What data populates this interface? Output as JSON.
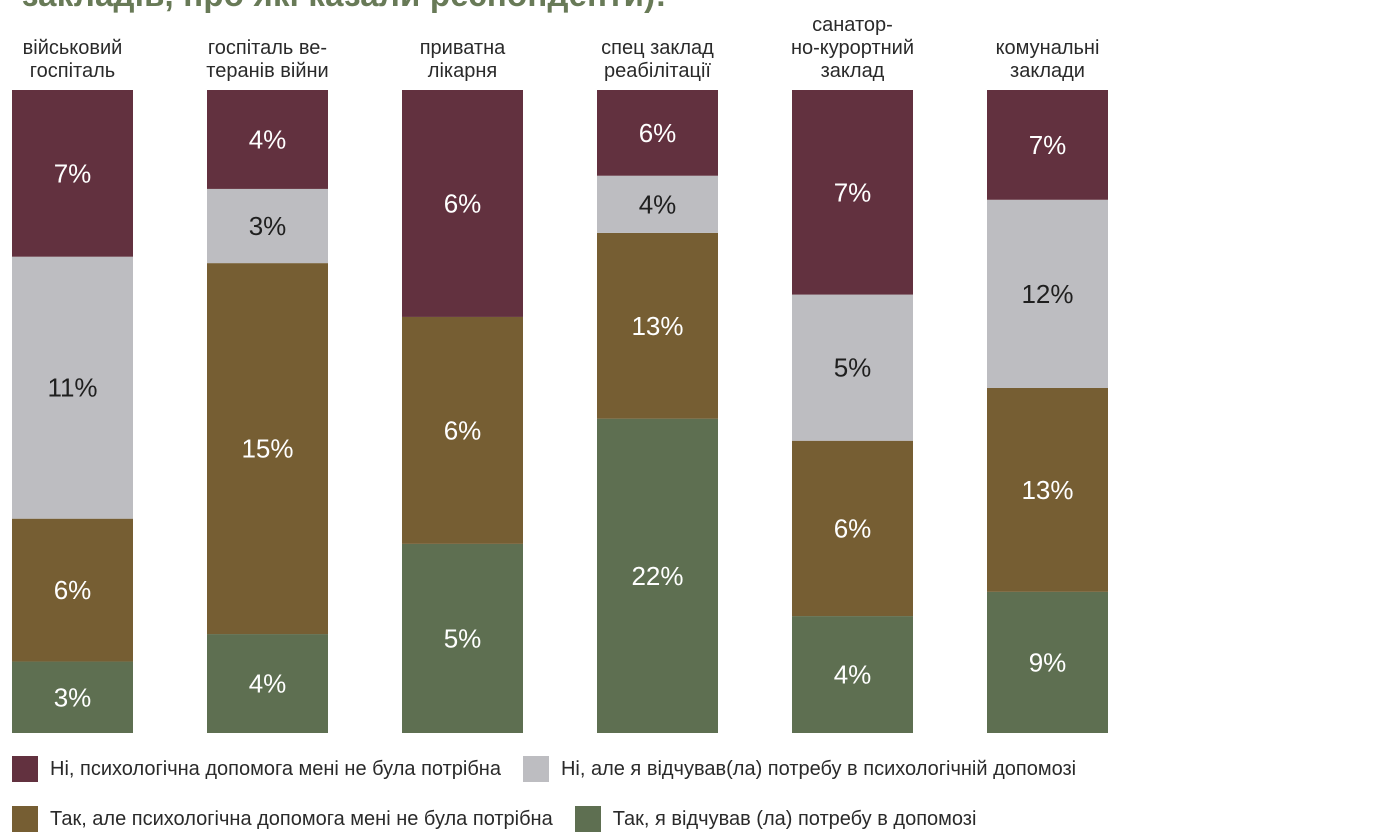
{
  "header": {
    "title": "закладів, про які казали респонденти):"
  },
  "chart_data": {
    "type": "bar",
    "stacked": true,
    "categories": [
      [
        "військовий",
        "госпіталь"
      ],
      [
        "госпіталь ве-",
        "теранів війни"
      ],
      [
        "приватна",
        "лікарня"
      ],
      [
        "спец заклад",
        "реабілітації"
      ],
      [
        "санатор-",
        "но-курортний",
        "заклад"
      ],
      [
        "комунальні",
        "заклади"
      ]
    ],
    "series": [
      {
        "name": "Так, я відчував (ла) потребу в допомозі",
        "color": "#5e6f51",
        "values": [
          3,
          4,
          5,
          22,
          4,
          9
        ],
        "labels": [
          "3%",
          "4%",
          "5%",
          "22%",
          "4%",
          "9%"
        ]
      },
      {
        "name": "Так, але психологічна допомога мені не була потрібна",
        "color": "#765e33",
        "values": [
          6,
          15,
          6,
          13,
          6,
          13
        ],
        "labels": [
          "6%",
          "15%",
          "6%",
          "13%",
          "6%",
          "13%"
        ]
      },
      {
        "name": "Ні, але я відчував(ла) потребу в психологічній допомозі",
        "color": "#bdbdc1",
        "values": [
          11,
          3,
          0,
          4,
          5,
          12
        ],
        "labels": [
          "11%",
          "3%",
          "",
          "4%",
          "5%",
          "12%"
        ]
      },
      {
        "name": "Ні, психологічна допомога мені не була потрібна",
        "color": "#62313f",
        "values": [
          7,
          4,
          6,
          6,
          7,
          7
        ],
        "labels": [
          "7%",
          "4%",
          "6%",
          "6%",
          "7%",
          "7%"
        ]
      }
    ],
    "normalized": true,
    "grid": false,
    "legend_position": "bottom"
  },
  "legend": {
    "rows": [
      [
        {
          "label": "Ні, психологічна допомога мені не була потрібна",
          "color": "#62313f"
        },
        {
          "label": "Ні, але я відчував(ла) потребу в психологічній допомозі",
          "color": "#bdbdc1"
        }
      ],
      [
        {
          "label": "Так, але психологічна допомога мені не була потрібна",
          "color": "#765e33"
        },
        {
          "label": "Так, я відчував (ла) потребу в допомозі",
          "color": "#5e6f51"
        }
      ]
    ]
  }
}
